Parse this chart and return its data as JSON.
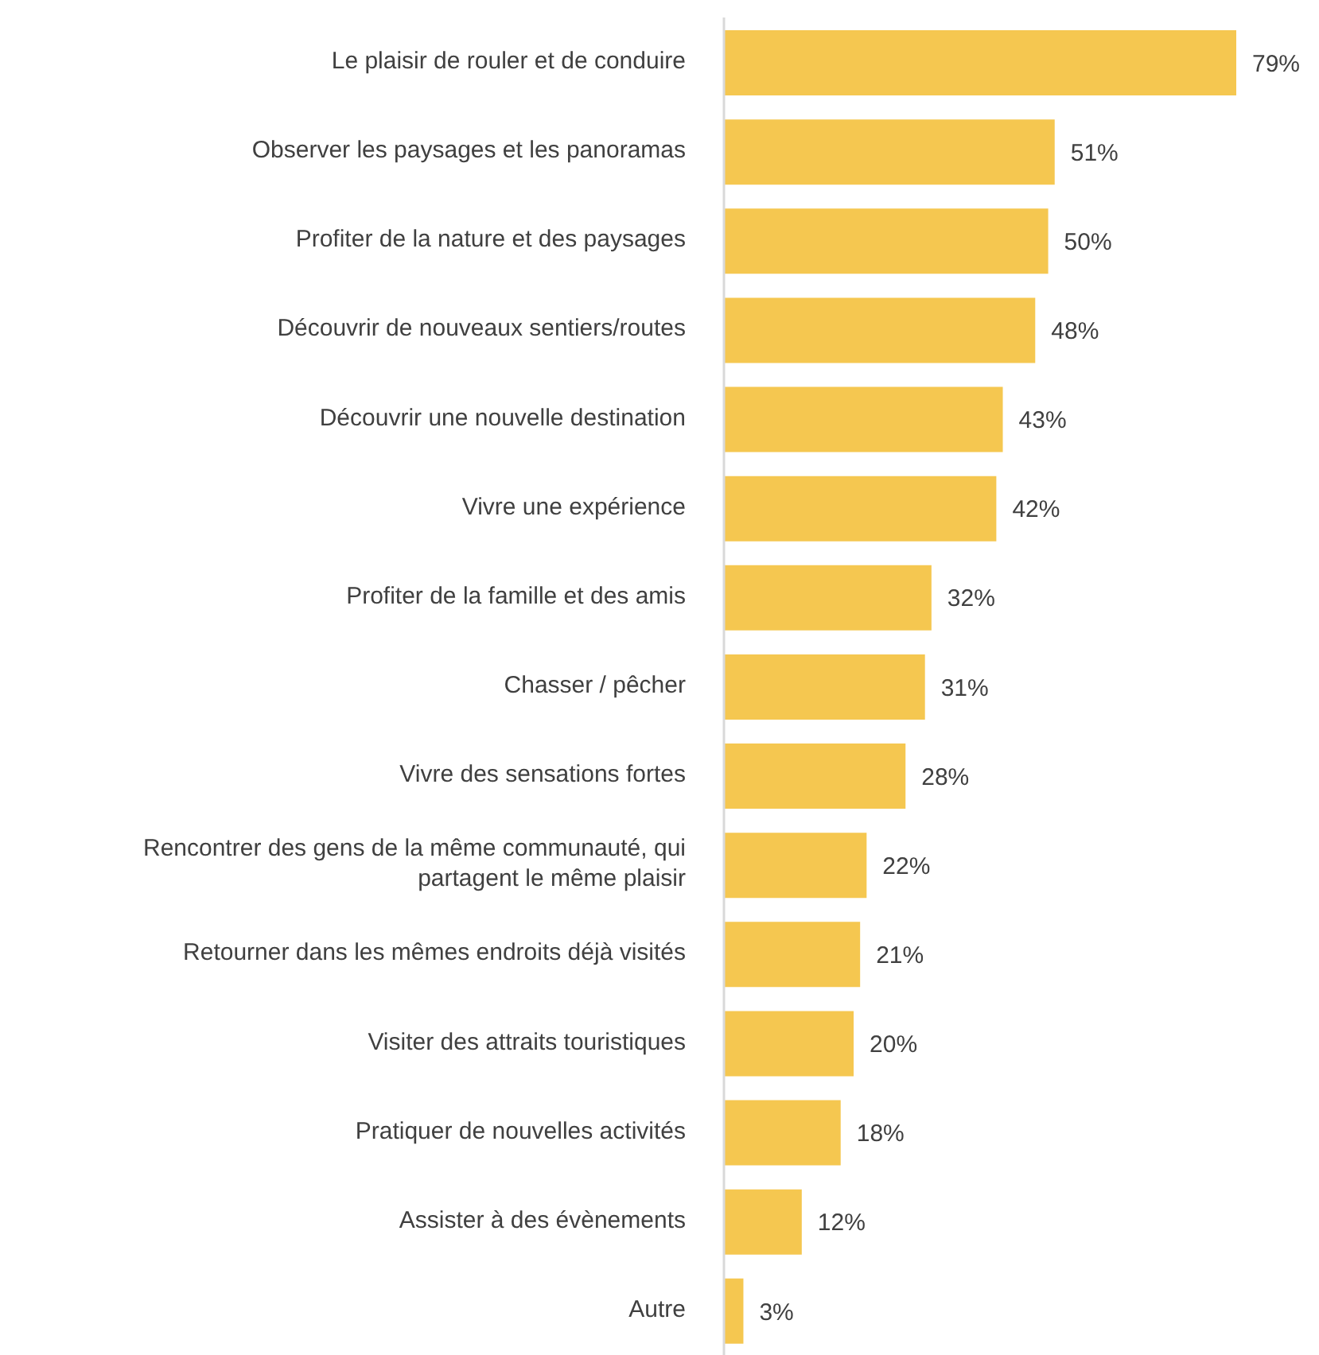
{
  "chart_data": {
    "type": "bar",
    "orientation": "horizontal",
    "categories": [
      "Le plaisir de rouler et de conduire",
      "Observer les paysages et les panoramas",
      "Profiter de la nature et des paysages",
      "Découvrir de nouveaux sentiers/routes",
      "Découvrir une nouvelle destination",
      "Vivre une expérience",
      "Profiter de la famille et des amis",
      "Chasser / pêcher",
      "Vivre des sensations fortes",
      "Rencontrer des gens de la même communauté, qui partagent le même plaisir",
      "Retourner dans les mêmes endroits déjà visités",
      "Visiter des attraits touristiques",
      "Pratiquer de nouvelles activités",
      "Assister à des évènements",
      "Autre"
    ],
    "values": [
      79,
      51,
      50,
      48,
      43,
      42,
      32,
      31,
      28,
      22,
      21,
      20,
      18,
      12,
      3
    ],
    "value_labels": [
      "79%",
      "51%",
      "50%",
      "48%",
      "43%",
      "42%",
      "32%",
      "31%",
      "28%",
      "22%",
      "21%",
      "20%",
      "18%",
      "12%",
      "3%"
    ],
    "color": "#f5c750"
  }
}
